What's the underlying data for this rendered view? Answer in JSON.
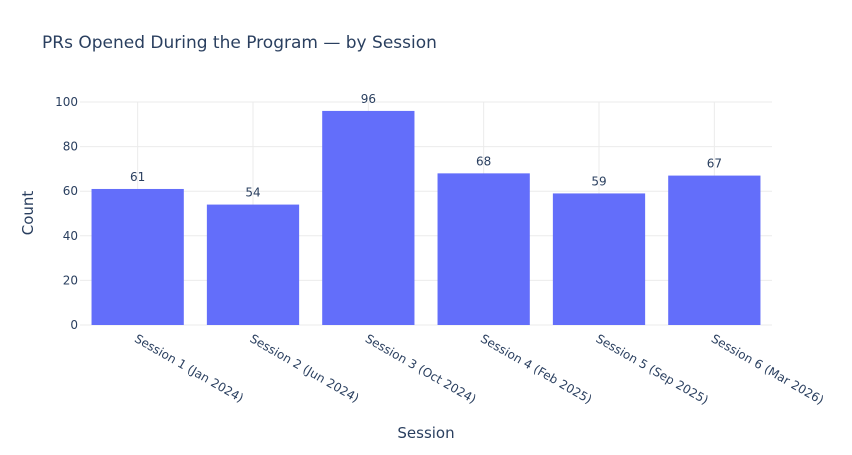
{
  "chart_data": {
    "type": "bar",
    "title": "PRs Opened During the Program — by Session",
    "xlabel": "Session",
    "ylabel": "Count",
    "categories": [
      "Session 1 (Jan 2024)",
      "Session 2 (Jun 2024)",
      "Session 3 (Oct 2024)",
      "Session 4 (Feb 2025)",
      "Session 5 (Sep 2025)",
      "Session 6 (Mar 2026)"
    ],
    "values": [
      61,
      54,
      96,
      68,
      59,
      67
    ],
    "ylim": [
      0,
      100
    ],
    "yticks": [
      0,
      20,
      40,
      60,
      80,
      100
    ],
    "grid": true,
    "bar_color": "#636efa",
    "grid_color": "#ebebeb",
    "text_color": "#2a3f5f"
  }
}
